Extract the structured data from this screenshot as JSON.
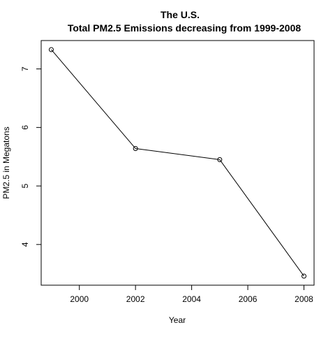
{
  "chart_data": {
    "type": "line",
    "title_line1": "The U.S.",
    "title_line2": "Total PM2.5 Emissions decreasing from 1999-2008",
    "xlabel": "Year",
    "ylabel": "PM2.5 in Megatons",
    "x": [
      1999,
      2002,
      2005,
      2008
    ],
    "y": [
      7.33,
      5.64,
      5.45,
      3.46
    ],
    "xlim": [
      1998.64,
      2008.36
    ],
    "ylim": [
      3.305,
      7.485
    ],
    "x_ticks": [
      2000,
      2002,
      2004,
      2006,
      2008
    ],
    "y_ticks": [
      4,
      5,
      6,
      7
    ],
    "marker": "open-circle",
    "grid": false,
    "line_color": "#000000"
  }
}
